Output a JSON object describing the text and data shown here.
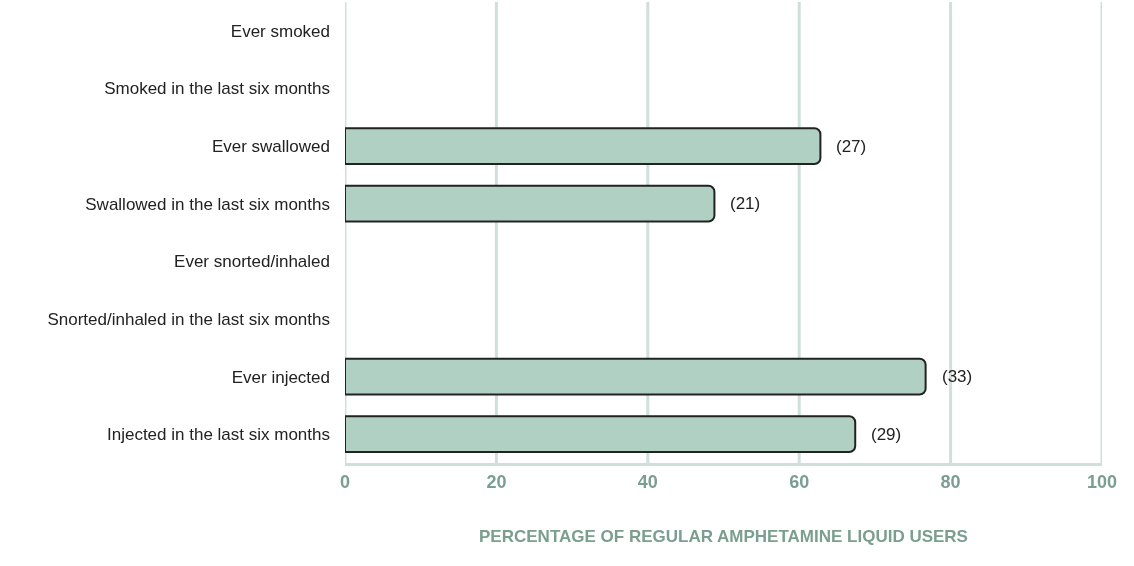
{
  "chart_data": {
    "type": "bar",
    "orientation": "horizontal",
    "categories": [
      "Ever smoked",
      "Smoked in the last six months",
      "Ever swallowed",
      "Swallowed in the last six months",
      "Ever snorted/inhaled",
      "Snorted/inhaled in the last six months",
      "Ever injected",
      "Injected in the last six months"
    ],
    "values": [
      null,
      null,
      62.8,
      48.8,
      null,
      null,
      76.7,
      67.4
    ],
    "annotations": [
      {
        "text": "(27)",
        "x": 62.8,
        "y": "Ever swallowed"
      },
      {
        "text": "(21)",
        "x": 48.8,
        "y": "Swallowed in the last six months"
      },
      {
        "text": "(33)",
        "x": 76.7,
        "y": "Ever injected"
      },
      {
        "text": "(29)",
        "x": 67.4,
        "y": "Injected in the last six months"
      }
    ],
    "color": "#b0d0c4",
    "xlabel": "PERCENTAGE OF REGULAR AMPHETAMINE LIQUID USERS",
    "xlim": [
      0,
      100
    ],
    "xticks": [
      0,
      20,
      40,
      60,
      80,
      100
    ],
    "grid": "x"
  }
}
